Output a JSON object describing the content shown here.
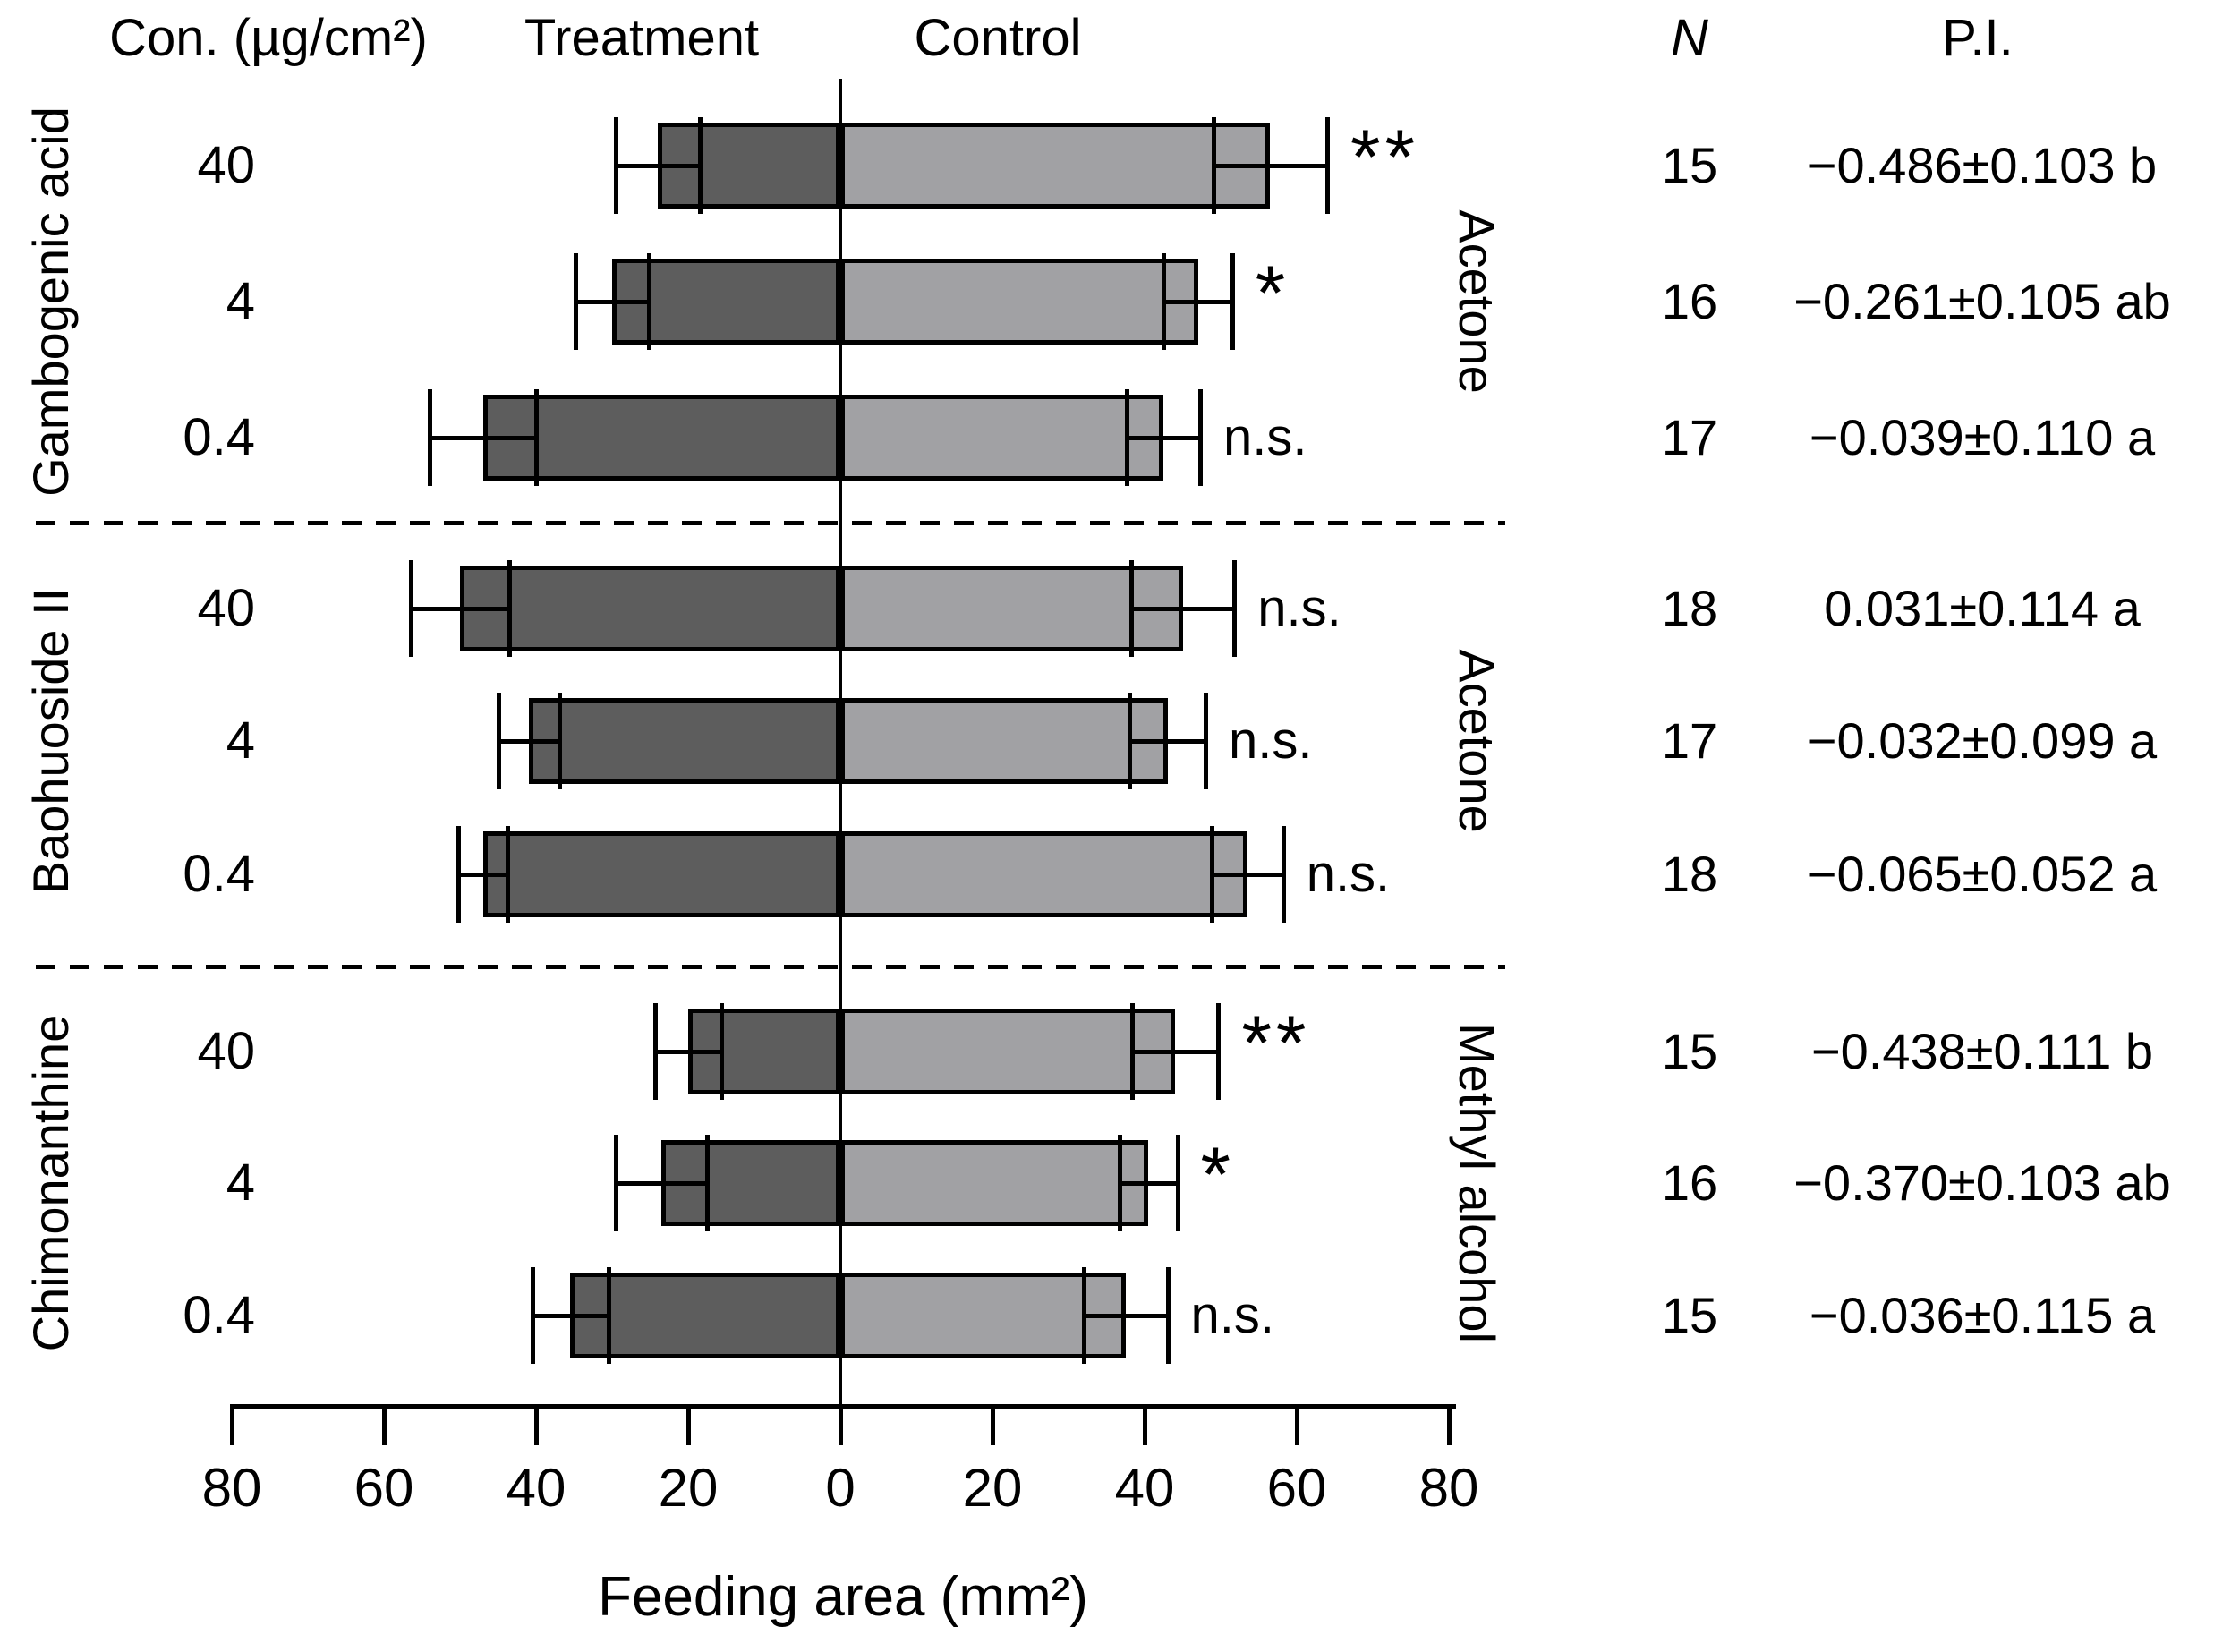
{
  "chart_data": {
    "type": "bar",
    "variant": "diverging-horizontal-paired-with-error-bars",
    "xlabel": "Feeding area (mm²)",
    "axis": {
      "tick_labels": [
        "80",
        "60",
        "40",
        "20",
        "0",
        "20",
        "40",
        "60",
        "80"
      ],
      "tick_values": [
        -80,
        -60,
        -40,
        -20,
        0,
        20,
        40,
        60,
        80
      ],
      "max_each_side": 80,
      "grid": false
    },
    "headers": {
      "concentration": "Con. (µg/cm²)",
      "treatment": "Treatment",
      "control": "Control",
      "n": "N",
      "pi": "P.I."
    },
    "series_names": [
      "Treatment",
      "Control"
    ],
    "colors": {
      "treatment_bar": "#5d5d5d",
      "control_bar": "#a1a1a4",
      "line": "#000000",
      "background": "#ffffff"
    },
    "groups": [
      {
        "compound": "Gambogenic acid",
        "solvent": "Acetone",
        "rows": [
          {
            "conc": "40",
            "treatment": 24,
            "treatment_err": 5.5,
            "control": 56.5,
            "control_err": 7.5,
            "sig": "**",
            "n": "15",
            "pi": "−0.486±0.103 b"
          },
          {
            "conc": "4",
            "treatment": 30,
            "treatment_err": 4.8,
            "control": 47,
            "control_err": 4.5,
            "sig": "*",
            "n": "16",
            "pi": "−0.261±0.105 ab"
          },
          {
            "conc": "0.4",
            "treatment": 47,
            "treatment_err": 7,
            "control": 42.5,
            "control_err": 4.8,
            "sig": "n.s.",
            "n": "17",
            "pi": "−0.039±0.110 a"
          }
        ]
      },
      {
        "compound": "Baohuoside II",
        "solvent": "Acetone",
        "rows": [
          {
            "conc": "40",
            "treatment": 50,
            "treatment_err": 6.5,
            "control": 45,
            "control_err": 6.8,
            "sig": "n.s.",
            "n": "18",
            "pi": "0.031±0.114 a"
          },
          {
            "conc": "4",
            "treatment": 41,
            "treatment_err": 4,
            "control": 43,
            "control_err": 5,
            "sig": "n.s.",
            "n": "17",
            "pi": "−0.032±0.099 a"
          },
          {
            "conc": "0.4",
            "treatment": 47,
            "treatment_err": 3.2,
            "control": 53.5,
            "control_err": 4.7,
            "sig": "n.s.",
            "n": "18",
            "pi": "−0.065±0.052 a"
          }
        ]
      },
      {
        "compound": "Chimonanthine",
        "solvent": "Methyl alcohol",
        "rows": [
          {
            "conc": "40",
            "treatment": 20,
            "treatment_err": 4.4,
            "control": 44,
            "control_err": 5.7,
            "sig": "**",
            "n": "15",
            "pi": "−0.438±0.111 b"
          },
          {
            "conc": "4",
            "treatment": 23.5,
            "treatment_err": 6,
            "control": 40.5,
            "control_err": 3.8,
            "sig": "*",
            "n": "16",
            "pi": "−0.370±0.103 ab"
          },
          {
            "conc": "0.4",
            "treatment": 35.5,
            "treatment_err": 5,
            "control": 37.5,
            "control_err": 5.5,
            "sig": "n.s.",
            "n": "15",
            "pi": "−0.036±0.115 a"
          }
        ]
      }
    ]
  }
}
